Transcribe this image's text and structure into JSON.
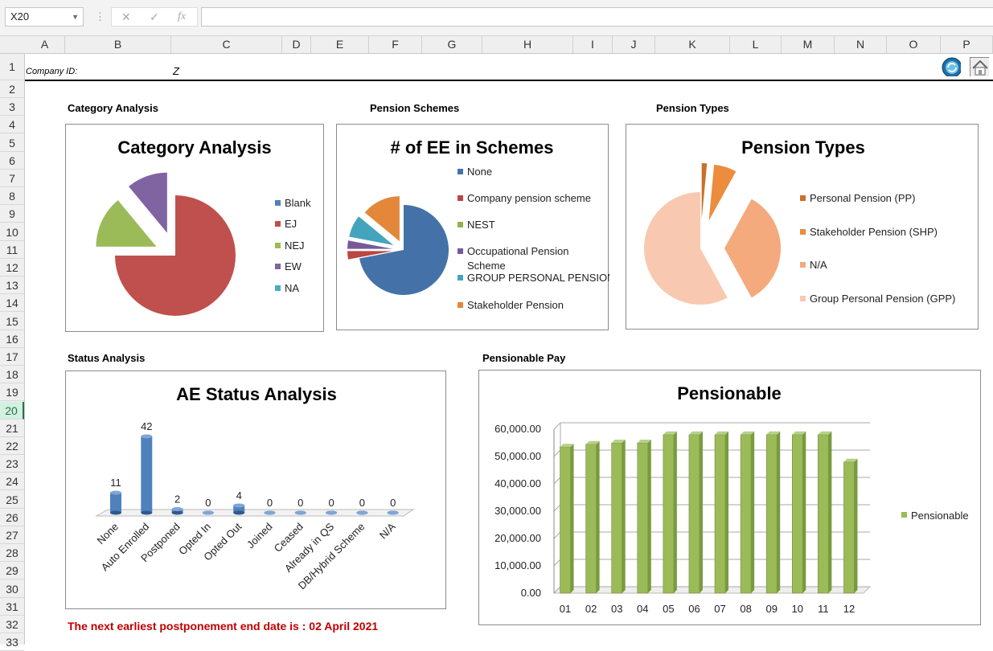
{
  "formula_bar": {
    "cell_ref": "X20",
    "cancel_icon": "✕",
    "confirm_icon": "✓",
    "fx_label": "fx"
  },
  "columns": [
    "A",
    "B",
    "C",
    "D",
    "E",
    "F",
    "G",
    "H",
    "I",
    "J",
    "K",
    "L",
    "M",
    "N",
    "O",
    "P"
  ],
  "rows": [
    "1",
    "2",
    "3",
    "4",
    "5",
    "6",
    "7",
    "8",
    "9",
    "10",
    "11",
    "12",
    "13",
    "14",
    "15",
    "16",
    "17",
    "18",
    "19",
    "20",
    "21",
    "22",
    "23",
    "24",
    "25",
    "26",
    "27",
    "28",
    "29",
    "30",
    "31",
    "32",
    "33"
  ],
  "selected_row": "20",
  "sheet": {
    "company_label": "Company ID:",
    "company_value": "Z",
    "section_category": "Category Analysis",
    "section_schemes": "Pension Schemes",
    "section_types": "Pension Types",
    "section_status": "Status Analysis",
    "section_pay": "Pensionable Pay",
    "note": "The next earliest postponement end date is : 02 April 2021"
  },
  "icons": {
    "refresh": "refresh-icon",
    "home": "home-icon"
  },
  "chart_data": [
    {
      "type": "pie",
      "title": "Category Analysis",
      "categories": [
        "Blank",
        "EJ",
        "NEJ",
        "EW",
        "NA"
      ],
      "values": [
        0,
        75,
        14,
        11,
        0
      ],
      "colors": [
        "#4f81bd",
        "#c0504d",
        "#9bbb59",
        "#8064a2",
        "#4bacc6"
      ]
    },
    {
      "type": "pie",
      "title": "# of EE in Schemes",
      "categories": [
        "None",
        "Company pension scheme",
        "NEST",
        "Occupational Pension Scheme",
        "GROUP PERSONAL PENSION",
        "Stakeholder Pension"
      ],
      "values": [
        72,
        3,
        0,
        3,
        8,
        14
      ],
      "colors": [
        "#4472a8",
        "#b94744",
        "#8fb14e",
        "#765a98",
        "#45a4bd",
        "#e3883a"
      ]
    },
    {
      "type": "pie",
      "title": "Pension Types",
      "categories": [
        "Personal Pension (PP)",
        "Stakeholder Pension (SHP)",
        "N/A",
        "Group Personal Pension (GPP)"
      ],
      "values": [
        1.5,
        6.5,
        34,
        58
      ],
      "colors": [
        "#c8712a",
        "#eb8c3e",
        "#f4aa7c",
        "#f8c9b0"
      ]
    },
    {
      "type": "bar",
      "title": "AE Status Analysis",
      "categories": [
        "None",
        "Auto Enrolled",
        "Postponed",
        "Opted In",
        "Opted Out",
        "Joined",
        "Ceased",
        "Already in QS",
        "DB/Hybrid Scheme",
        "N/A"
      ],
      "values": [
        11,
        42,
        2,
        0,
        4,
        0,
        0,
        0,
        0,
        0
      ],
      "color": "#4f81bd"
    },
    {
      "type": "bar",
      "title": "Pensionable",
      "categories": [
        "01",
        "02",
        "03",
        "04",
        "05",
        "06",
        "07",
        "08",
        "09",
        "10",
        "11",
        "12"
      ],
      "series": [
        {
          "name": "Pensionable",
          "values": [
            53500,
            54500,
            55000,
            55000,
            58000,
            58000,
            58000,
            58000,
            58000,
            58000,
            58000,
            48000
          ]
        }
      ],
      "ylim": [
        0,
        60000
      ],
      "yticks": [
        "0.00",
        "10,000.00",
        "20,000.00",
        "30,000.00",
        "40,000.00",
        "50,000.00",
        "60,000.00"
      ],
      "color": "#9bbb59"
    }
  ]
}
